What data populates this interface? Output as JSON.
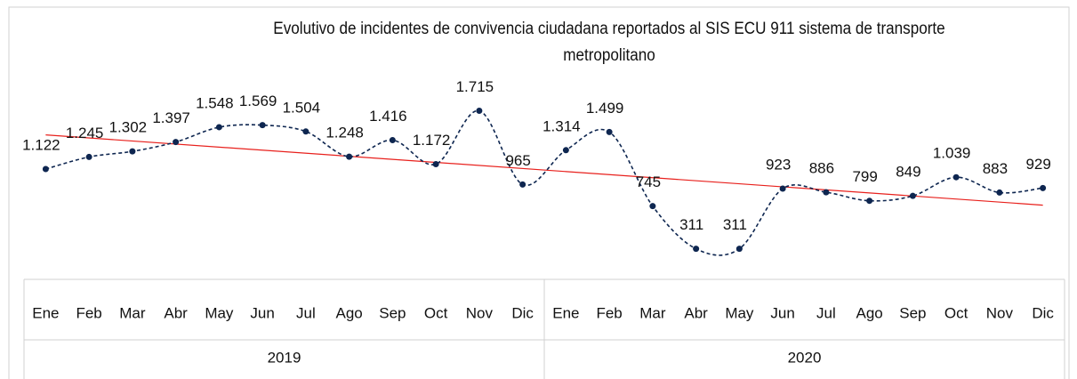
{
  "chart_data": {
    "type": "line",
    "title": "Evolutivo de incidentes de convivencia ciudadana reportados al SIS ECU 911  sistema de transporte metropolitano",
    "categories": [
      "Ene",
      "Feb",
      "Mar",
      "Abr",
      "May",
      "Jun",
      "Jul",
      "Ago",
      "Sep",
      "Oct",
      "Nov",
      "Dic",
      "Ene",
      "Feb",
      "Mar",
      "Abr",
      "May",
      "Jun",
      "Jul",
      "Ago",
      "Sep",
      "Oct",
      "Nov",
      "Dic"
    ],
    "groups": [
      "2019",
      "2020"
    ],
    "values": [
      1122,
      1245,
      1302,
      1397,
      1548,
      1569,
      1504,
      1248,
      1416,
      1172,
      1715,
      965,
      1314,
      1499,
      745,
      311,
      311,
      923,
      886,
      799,
      849,
      1039,
      883,
      929
    ],
    "value_labels": [
      "1.122",
      "1.245",
      "1.302",
      "1.397",
      "1.548",
      "1.569",
      "1.504",
      "1.248",
      "1.416",
      "1.172",
      "1.715",
      "965",
      "1.314",
      "1.499",
      "745",
      "311",
      "311",
      "923",
      "886",
      "799",
      "849",
      "1.039",
      "883",
      "929"
    ],
    "color": "#0e2650",
    "smooth": true,
    "dashed": true,
    "trendline": true,
    "trendline_color": "#e8201c",
    "ylim": [
      0,
      2000
    ]
  }
}
